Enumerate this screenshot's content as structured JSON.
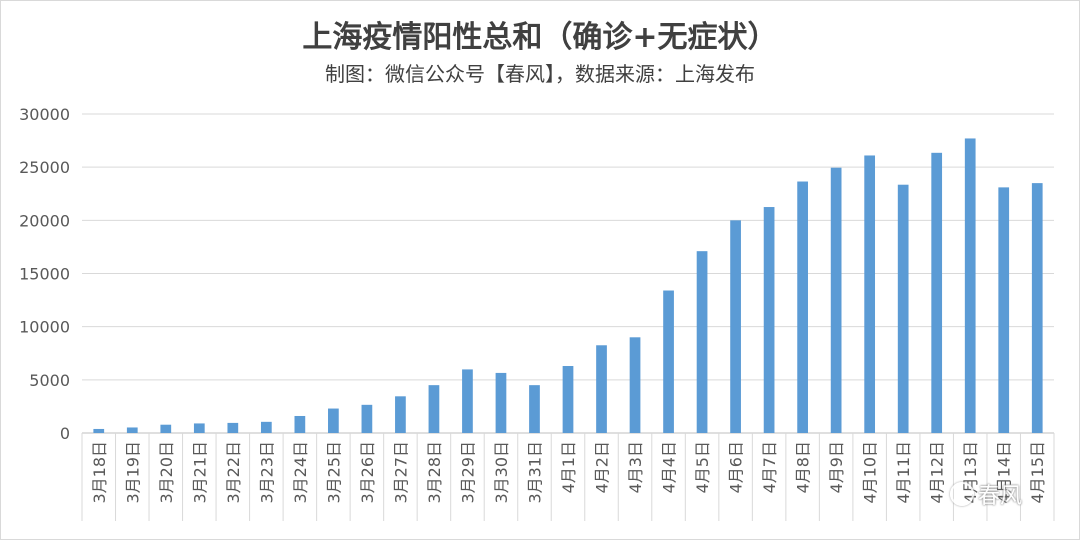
{
  "chart_data": {
    "type": "bar",
    "title": "上海疫情阳性总和（确诊+无症状）",
    "subtitle": "制图：微信公众号【春风】，数据来源：上海发布",
    "xlabel": "",
    "ylabel": "",
    "ylim": [
      0,
      30000
    ],
    "yticks": [
      0,
      5000,
      10000,
      15000,
      20000,
      25000,
      30000
    ],
    "grid": true,
    "legend": "none",
    "bar_color": "#5b9bd5",
    "categories": [
      "3月18日",
      "3月19日",
      "3月20日",
      "3月21日",
      "3月22日",
      "3月23日",
      "3月24日",
      "3月25日",
      "3月26日",
      "3月27日",
      "3月28日",
      "3月29日",
      "3月30日",
      "3月31日",
      "4月1日",
      "4月2日",
      "4月3日",
      "4月4日",
      "4月5日",
      "4月6日",
      "4月7日",
      "4月8日",
      "4月9日",
      "4月10日",
      "4月11日",
      "4月12日",
      "4月13日",
      "4月14日",
      "4月15日"
    ],
    "values": [
      380,
      520,
      780,
      900,
      950,
      1050,
      1600,
      2300,
      2650,
      3450,
      4500,
      5980,
      5650,
      4500,
      6300,
      8250,
      9000,
      13400,
      17100,
      20000,
      21250,
      23650,
      24950,
      26100,
      23350,
      26350,
      27700,
      23100,
      23500
    ]
  },
  "watermark": {
    "text": "春风"
  }
}
